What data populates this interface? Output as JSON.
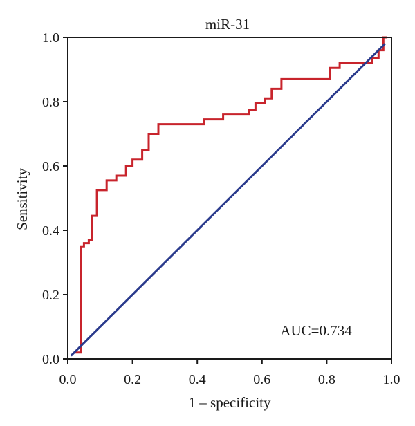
{
  "chart_data": {
    "type": "line",
    "title": "miR-31",
    "xlabel": "1 – specificity",
    "ylabel": "Sensitivity",
    "xlim": [
      0,
      1
    ],
    "ylim": [
      0,
      1
    ],
    "xticks": [
      "0.0",
      "0.2",
      "0.4",
      "0.6",
      "0.8",
      "1.0"
    ],
    "yticks": [
      "0.0",
      "0.2",
      "0.4",
      "0.6",
      "0.8",
      "1.0"
    ],
    "annotation": "AUC=0.734",
    "grid": false,
    "series": [
      {
        "color": "#c8242c",
        "points": [
          [
            0.02,
            0.02
          ],
          [
            0.04,
            0.02
          ],
          [
            0.04,
            0.35
          ],
          [
            0.05,
            0.35
          ],
          [
            0.05,
            0.36
          ],
          [
            0.065,
            0.36
          ],
          [
            0.065,
            0.37
          ],
          [
            0.075,
            0.37
          ],
          [
            0.075,
            0.445
          ],
          [
            0.09,
            0.445
          ],
          [
            0.09,
            0.525
          ],
          [
            0.12,
            0.525
          ],
          [
            0.12,
            0.555
          ],
          [
            0.15,
            0.555
          ],
          [
            0.15,
            0.57
          ],
          [
            0.18,
            0.57
          ],
          [
            0.18,
            0.6
          ],
          [
            0.2,
            0.6
          ],
          [
            0.2,
            0.62
          ],
          [
            0.23,
            0.62
          ],
          [
            0.23,
            0.65
          ],
          [
            0.25,
            0.65
          ],
          [
            0.25,
            0.7
          ],
          [
            0.28,
            0.7
          ],
          [
            0.28,
            0.73
          ],
          [
            0.42,
            0.73
          ],
          [
            0.42,
            0.745
          ],
          [
            0.48,
            0.745
          ],
          [
            0.48,
            0.76
          ],
          [
            0.56,
            0.76
          ],
          [
            0.56,
            0.775
          ],
          [
            0.58,
            0.775
          ],
          [
            0.58,
            0.795
          ],
          [
            0.61,
            0.795
          ],
          [
            0.61,
            0.81
          ],
          [
            0.63,
            0.81
          ],
          [
            0.63,
            0.84
          ],
          [
            0.66,
            0.84
          ],
          [
            0.66,
            0.87
          ],
          [
            0.81,
            0.87
          ],
          [
            0.81,
            0.905
          ],
          [
            0.84,
            0.905
          ],
          [
            0.84,
            0.92
          ],
          [
            0.94,
            0.92
          ],
          [
            0.94,
            0.935
          ],
          [
            0.96,
            0.935
          ],
          [
            0.96,
            0.96
          ],
          [
            0.975,
            0.96
          ],
          [
            0.975,
            1.0
          ],
          [
            0.985,
            1.0
          ]
        ]
      },
      {
        "color": "#2a3a8c",
        "points": [
          [
            0.01,
            0.01
          ],
          [
            0.98,
            0.98
          ]
        ]
      }
    ]
  }
}
